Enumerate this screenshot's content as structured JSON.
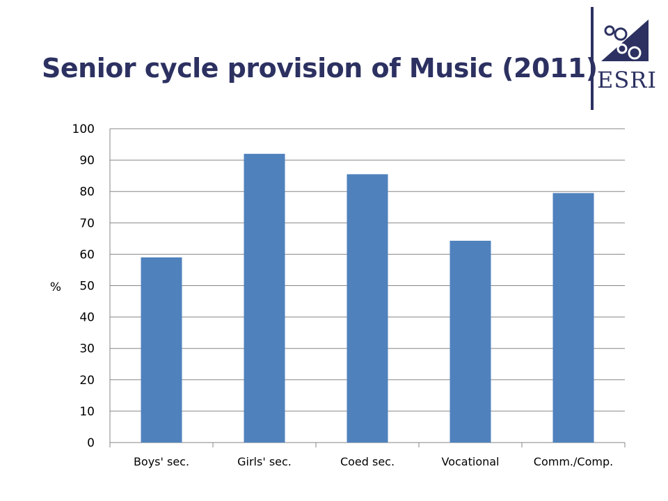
{
  "slide": {
    "title": "Senior cycle provision of Music (2011)"
  },
  "logo": {
    "text": "ESRI",
    "color": "#2c3161"
  },
  "chart_data": {
    "type": "bar",
    "categories": [
      "Boys' sec.",
      "Girls' sec.",
      "Coed sec.",
      "Vocational",
      "Comm./Comp."
    ],
    "values": [
      59,
      92,
      85.5,
      64.3,
      79.5
    ],
    "ylabel": "%",
    "ylim": [
      0,
      100
    ],
    "yticks": [
      0,
      10,
      20,
      30,
      40,
      50,
      60,
      70,
      80,
      90,
      100
    ],
    "grid": true,
    "bar_color": "#4f81bd",
    "grid_color": "#858585"
  }
}
